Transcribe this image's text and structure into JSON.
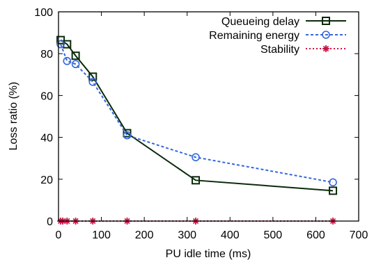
{
  "chart_data": {
    "type": "line",
    "xlabel": "PU idle time (ms)",
    "ylabel": "Loss ratio (%)",
    "xlim": [
      0,
      700
    ],
    "ylim": [
      0,
      100
    ],
    "xticks": [
      0,
      100,
      200,
      300,
      400,
      500,
      600,
      700
    ],
    "yticks": [
      0,
      20,
      40,
      60,
      80,
      100
    ],
    "grid": false,
    "legend_position": "top-right",
    "series": [
      {
        "name": "Queueing delay",
        "color": "#0a2a0a",
        "marker": "square",
        "line_style": "solid",
        "x": [
          5,
          20,
          40,
          80,
          160,
          320,
          640
        ],
        "y": [
          86.5,
          84.5,
          79,
          69,
          42,
          19.5,
          14.5
        ]
      },
      {
        "name": "Remaining energy",
        "color": "#3366dd",
        "marker": "circle",
        "line_style": "dashed",
        "x": [
          5,
          20,
          40,
          80,
          160,
          320,
          640
        ],
        "y": [
          84.5,
          76.5,
          75,
          66.5,
          41,
          30.5,
          18.5
        ]
      },
      {
        "name": "Stability",
        "color": "#cc1144",
        "marker": "star",
        "line_style": "dotted",
        "x": [
          5,
          10,
          20,
          40,
          80,
          160,
          320,
          640
        ],
        "y": [
          0,
          0,
          0,
          0,
          0,
          0,
          0,
          0
        ]
      }
    ]
  }
}
